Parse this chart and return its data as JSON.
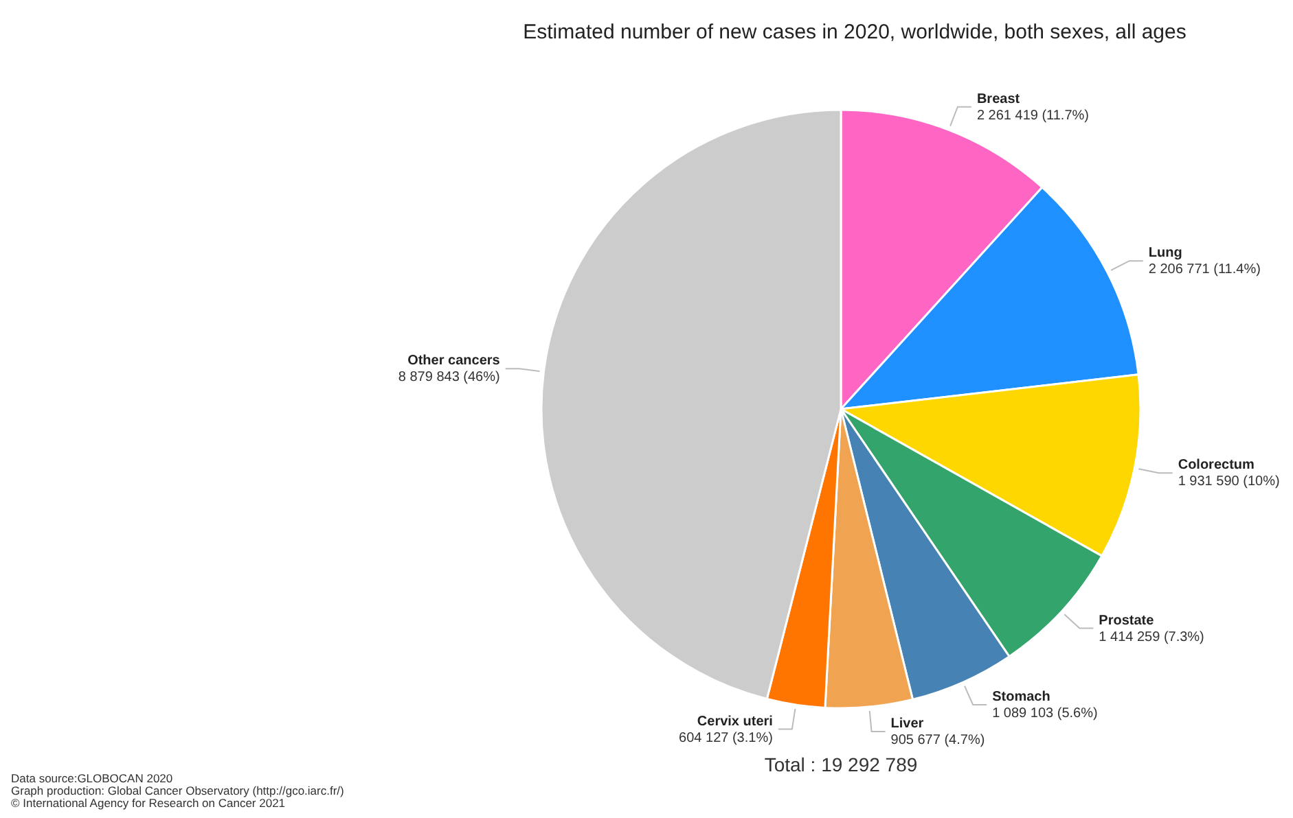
{
  "chart_data": {
    "type": "pie",
    "title": "Estimated number of new cases in 2020, worldwide, both sexes, all ages",
    "categories": [
      "Breast",
      "Lung",
      "Colorectum",
      "Prostate",
      "Stomach",
      "Liver",
      "Cervix uteri",
      "Other cancers"
    ],
    "values": [
      2261419,
      2206771,
      1931590,
      1414259,
      1089103,
      905677,
      604127,
      8879843
    ],
    "value_labels": [
      "2 261 419 (11.7%)",
      "2 206 771 (11.4%)",
      "1 931 590 (10%)",
      "1 414 259 (7.3%)",
      "1 089 103 (5.6%)",
      "905 677 (4.7%)",
      "604 127 (3.1%)",
      "8 879 843 (46%)"
    ],
    "colors": [
      "#ff66c4",
      "#1e90ff",
      "#ffd700",
      "#33a46b",
      "#4682b4",
      "#f0a451",
      "#ff7500",
      "#cccccc"
    ],
    "annotations": [
      "Total : 19 292 789",
      "Data source:GLOBOCAN 2020",
      "Graph production: Global Cancer Observatory (http://gco.iarc.fr/)",
      "© International Agency for Research on Cancer 2021"
    ]
  }
}
